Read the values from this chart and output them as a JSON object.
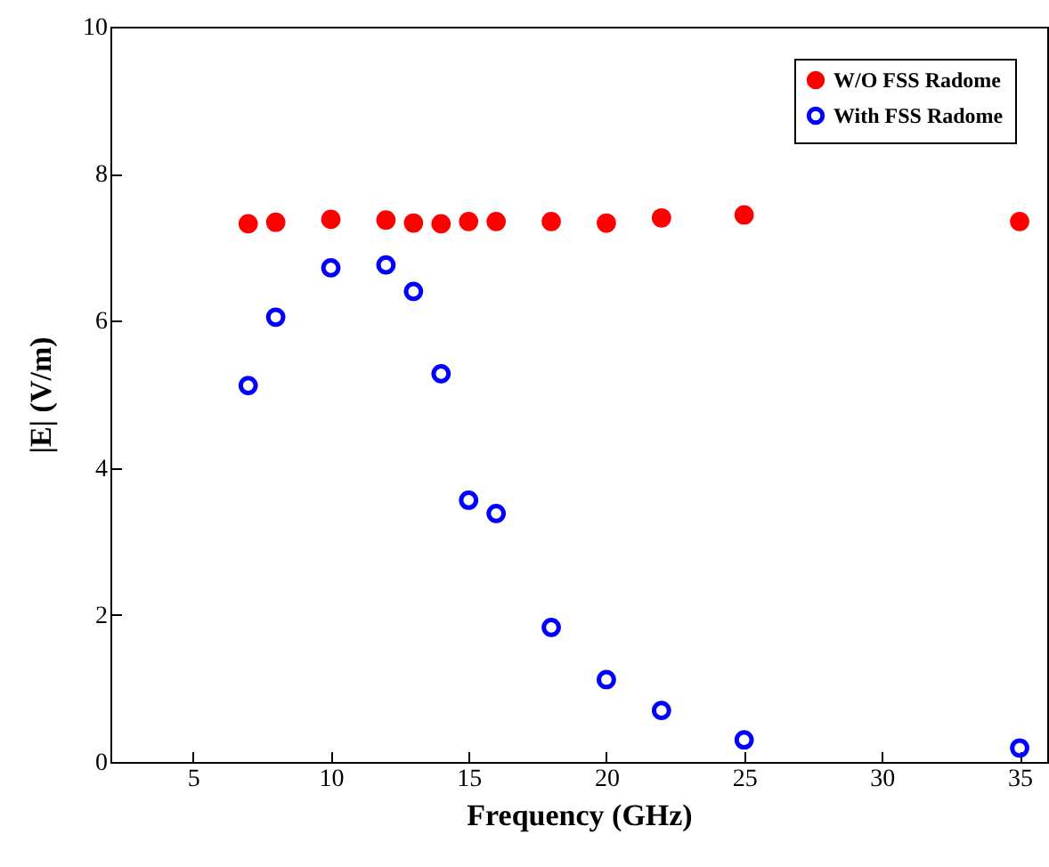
{
  "chart_data": {
    "type": "scatter",
    "xlabel": "Frequency (GHz)",
    "ylabel": "|E| (V/m)",
    "x": [
      7,
      8,
      10,
      12,
      13,
      14,
      15,
      16,
      18,
      20,
      22,
      25,
      35
    ],
    "series": [
      {
        "name": "W/O FSS Radome",
        "color": "#ff0000",
        "values": [
          7.32,
          7.34,
          7.38,
          7.37,
          7.33,
          7.32,
          7.35,
          7.35,
          7.35,
          7.33,
          7.4,
          7.44,
          7.35
        ]
      },
      {
        "name": "With FSS Radome",
        "color": "#0000ff",
        "values": [
          5.12,
          6.05,
          6.72,
          6.76,
          6.4,
          5.28,
          3.56,
          3.38,
          1.83,
          1.12,
          0.7,
          0.3,
          0.19
        ]
      }
    ],
    "xlim": [
      2,
      36
    ],
    "xticks": [
      5,
      10,
      15,
      20,
      25,
      30,
      35
    ],
    "ylim": [
      0,
      10
    ],
    "yticks": [
      0,
      2,
      4,
      6,
      8,
      10
    ],
    "grid": false,
    "legend": "top right",
    "marker": "circle"
  }
}
